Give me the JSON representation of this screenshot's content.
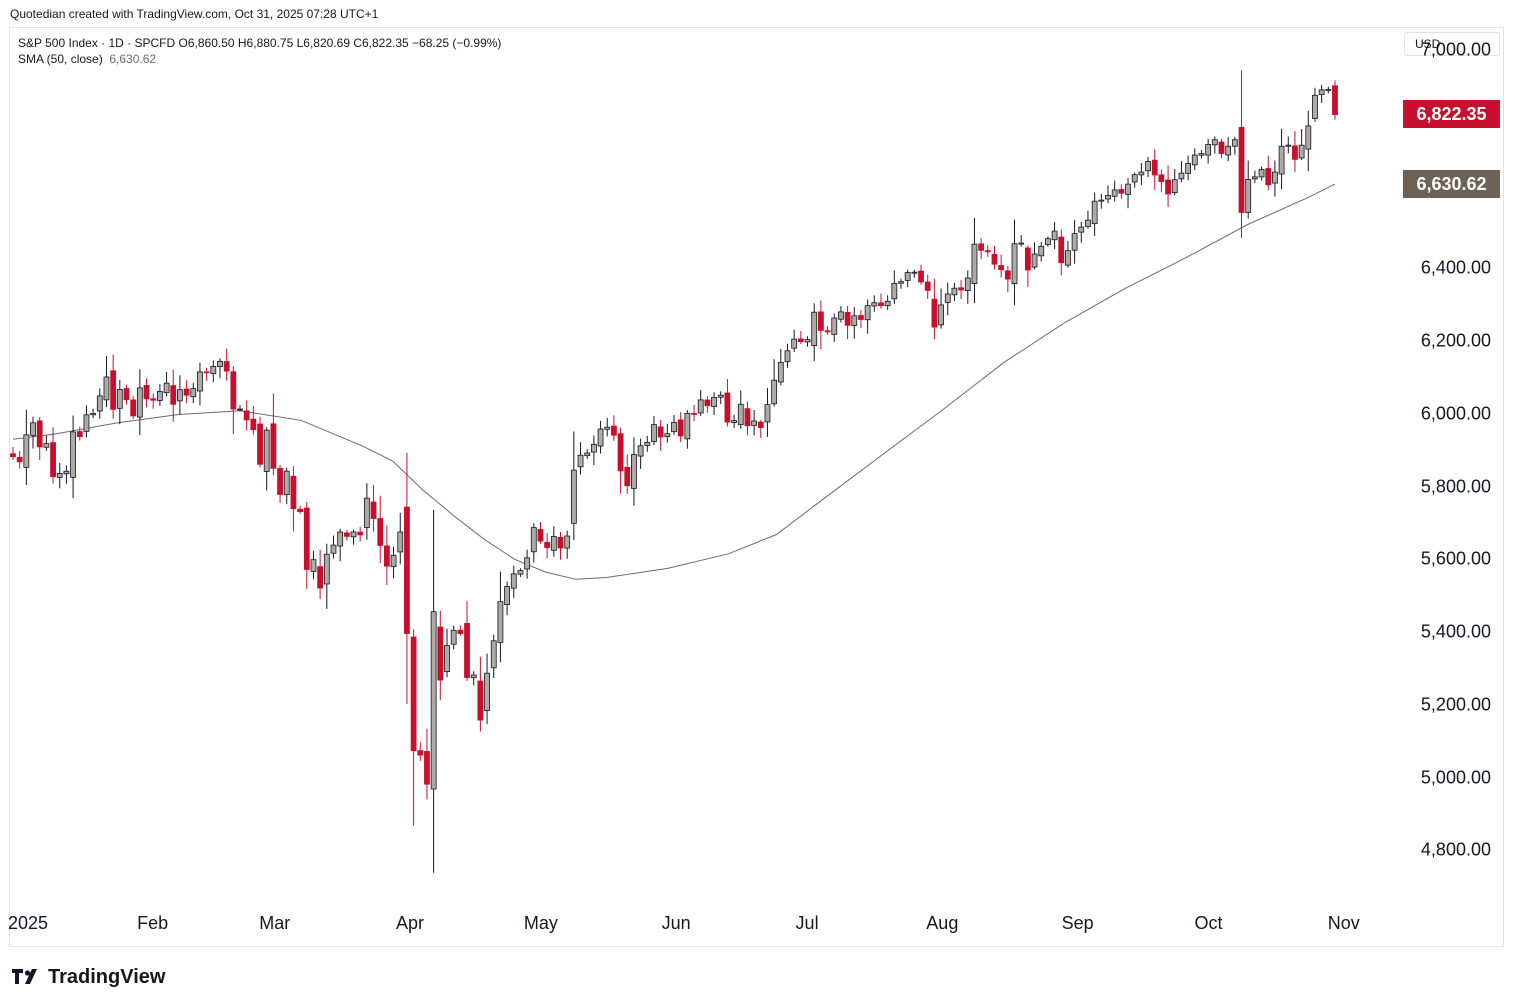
{
  "header": {
    "note": "Quotedian created with TradingView.com, Oct 31, 2025 07:28 UTC+1"
  },
  "legend": {
    "line1": "S&P 500 Index · 1D · SPCFD  O6,860.50  H6,880.75  L6,820.69  C6,822.35  −68.25 (−0.99%)",
    "line2_label": "SMA (50, close)",
    "line2_value": "6,630.62"
  },
  "currency": "USD",
  "price_labels": {
    "last": "6,822.35",
    "sma": "6,630.62",
    "last_color": "#c8102e",
    "sma_color": "#6d6256"
  },
  "brand": {
    "name": "TradingView",
    "logo_icon": "tradingview-logo-icon"
  },
  "colors": {
    "up": "#b0aaa5",
    "down": "#c8102e",
    "outline": "#131722",
    "sma": "#6b6b6b"
  },
  "chart_data": {
    "type": "candlestick",
    "ylim": [
      4650,
      7060
    ],
    "yticks": [
      {
        "v": 4800,
        "label": "4,800.00"
      },
      {
        "v": 5000,
        "label": "5,000.00"
      },
      {
        "v": 5200,
        "label": "5,200.00"
      },
      {
        "v": 5400,
        "label": "5,400.00"
      },
      {
        "v": 5600,
        "label": "5,600.00"
      },
      {
        "v": 5800,
        "label": "5,800.00"
      },
      {
        "v": 6000,
        "label": "6,000.00"
      },
      {
        "v": 6200,
        "label": "6,200.00"
      },
      {
        "v": 6400,
        "label": "6,400.00"
      },
      {
        "v": 7000,
        "label": "7,000.00"
      }
    ],
    "months": [
      {
        "label": "2025",
        "date": "2025-01-01"
      },
      {
        "label": "Feb",
        "date": "2025-02-01"
      },
      {
        "label": "Mar",
        "date": "2025-03-01"
      },
      {
        "label": "Apr",
        "date": "2025-04-01"
      },
      {
        "label": "May",
        "date": "2025-05-01"
      },
      {
        "label": "Jun",
        "date": "2025-06-01"
      },
      {
        "label": "Jul",
        "date": "2025-07-01"
      },
      {
        "label": "Aug",
        "date": "2025-08-01"
      },
      {
        "label": "Sep",
        "date": "2025-09-01"
      },
      {
        "label": "Oct",
        "date": "2025-10-01"
      },
      {
        "label": "Nov",
        "date": "2025-11-01"
      }
    ],
    "first_date": "2024-12-31",
    "last_date": "2025-10-30",
    "close": [
      5882,
      5868,
      5942,
      5975,
      5909,
      5918,
      5827,
      5836,
      5842,
      5950,
      5937,
      5997,
      6001,
      6049,
      6101,
      6012,
      6067,
      6039,
      5994,
      6071,
      6041,
      6037,
      6061,
      6084,
      6026,
      6066,
      6051,
      6069,
      6115,
      6114,
      6130,
      6144,
      6117,
      6013,
      6013,
      5983,
      5956,
      5861,
      5955,
      5850,
      5778,
      5842,
      5739,
      5731,
      5572,
      5599,
      5521,
      5614,
      5639,
      5675,
      5663,
      5675,
      5667,
      5768,
      5712,
      5638,
      5581,
      5611,
      5675,
      5396,
      5074,
      5062,
      4982,
      5456,
      5268,
      5363,
      5405,
      5396,
      5275,
      5282,
      5158,
      5287,
      5376,
      5484,
      5525,
      5560,
      5569,
      5604,
      5687,
      5650,
      5632,
      5663,
      5631,
      5664,
      5845,
      5886,
      5892,
      5916,
      5958,
      5963,
      5941,
      5843,
      5802,
      5888,
      5912,
      5921,
      5970,
      5936,
      5945,
      5976,
      5939,
      6001,
      6000,
      6038,
      6022,
      6045,
      6051,
      5977,
      5981,
      6026,
      5967,
      5980,
      5962,
      6025,
      6092,
      6141,
      6173,
      6205,
      6198,
      6204,
      6279,
      6229,
      6225,
      6263,
      6280,
      6243,
      6269,
      6259,
      6297,
      6305,
      6297,
      6309,
      6358,
      6363,
      6388,
      6389,
      6362,
      6339,
      6238,
      6299,
      6329,
      6345,
      6340,
      6373,
      6466,
      6449,
      6445,
      6411,
      6396,
      6370,
      6467,
      6469,
      6395,
      6439,
      6460,
      6481,
      6502,
      6415,
      6448,
      6495,
      6513,
      6532,
      6584,
      6587,
      6600,
      6615,
      6606,
      6631,
      6657,
      6664,
      6693,
      6656,
      6638,
      6604,
      6643,
      6661,
      6688,
      6711,
      6715,
      6740,
      6753,
      6715,
      6735,
      6753,
      6553,
      6644,
      6651,
      6671,
      6629,
      6664,
      6735,
      6738,
      6699,
      6738,
      6791,
      6875,
      6890,
      6891,
      6822
    ],
    "sma50": [
      {
        "x": "2024-12-31",
        "y": 5930
      },
      {
        "x": "2025-01-10",
        "y": 5945
      },
      {
        "x": "2025-01-24",
        "y": 5975
      },
      {
        "x": "2025-02-07",
        "y": 5998
      },
      {
        "x": "2025-02-21",
        "y": 6008
      },
      {
        "x": "2025-03-07",
        "y": 5982
      },
      {
        "x": "2025-03-21",
        "y": 5912
      },
      {
        "x": "2025-03-28",
        "y": 5870
      },
      {
        "x": "2025-04-04",
        "y": 5790
      },
      {
        "x": "2025-04-11",
        "y": 5720
      },
      {
        "x": "2025-04-18",
        "y": 5655
      },
      {
        "x": "2025-04-25",
        "y": 5600
      },
      {
        "x": "2025-05-02",
        "y": 5565
      },
      {
        "x": "2025-05-09",
        "y": 5545
      },
      {
        "x": "2025-05-16",
        "y": 5550
      },
      {
        "x": "2025-05-30",
        "y": 5575
      },
      {
        "x": "2025-06-13",
        "y": 5615
      },
      {
        "x": "2025-06-24",
        "y": 5668
      },
      {
        "x": "2025-07-03",
        "y": 5750
      },
      {
        "x": "2025-07-18",
        "y": 5885
      },
      {
        "x": "2025-08-01",
        "y": 6010
      },
      {
        "x": "2025-08-15",
        "y": 6140
      },
      {
        "x": "2025-08-29",
        "y": 6250
      },
      {
        "x": "2025-09-12",
        "y": 6345
      },
      {
        "x": "2025-09-26",
        "y": 6430
      },
      {
        "x": "2025-10-10",
        "y": 6520
      },
      {
        "x": "2025-10-24",
        "y": 6595
      },
      {
        "x": "2025-10-30",
        "y": 6631
      }
    ]
  }
}
